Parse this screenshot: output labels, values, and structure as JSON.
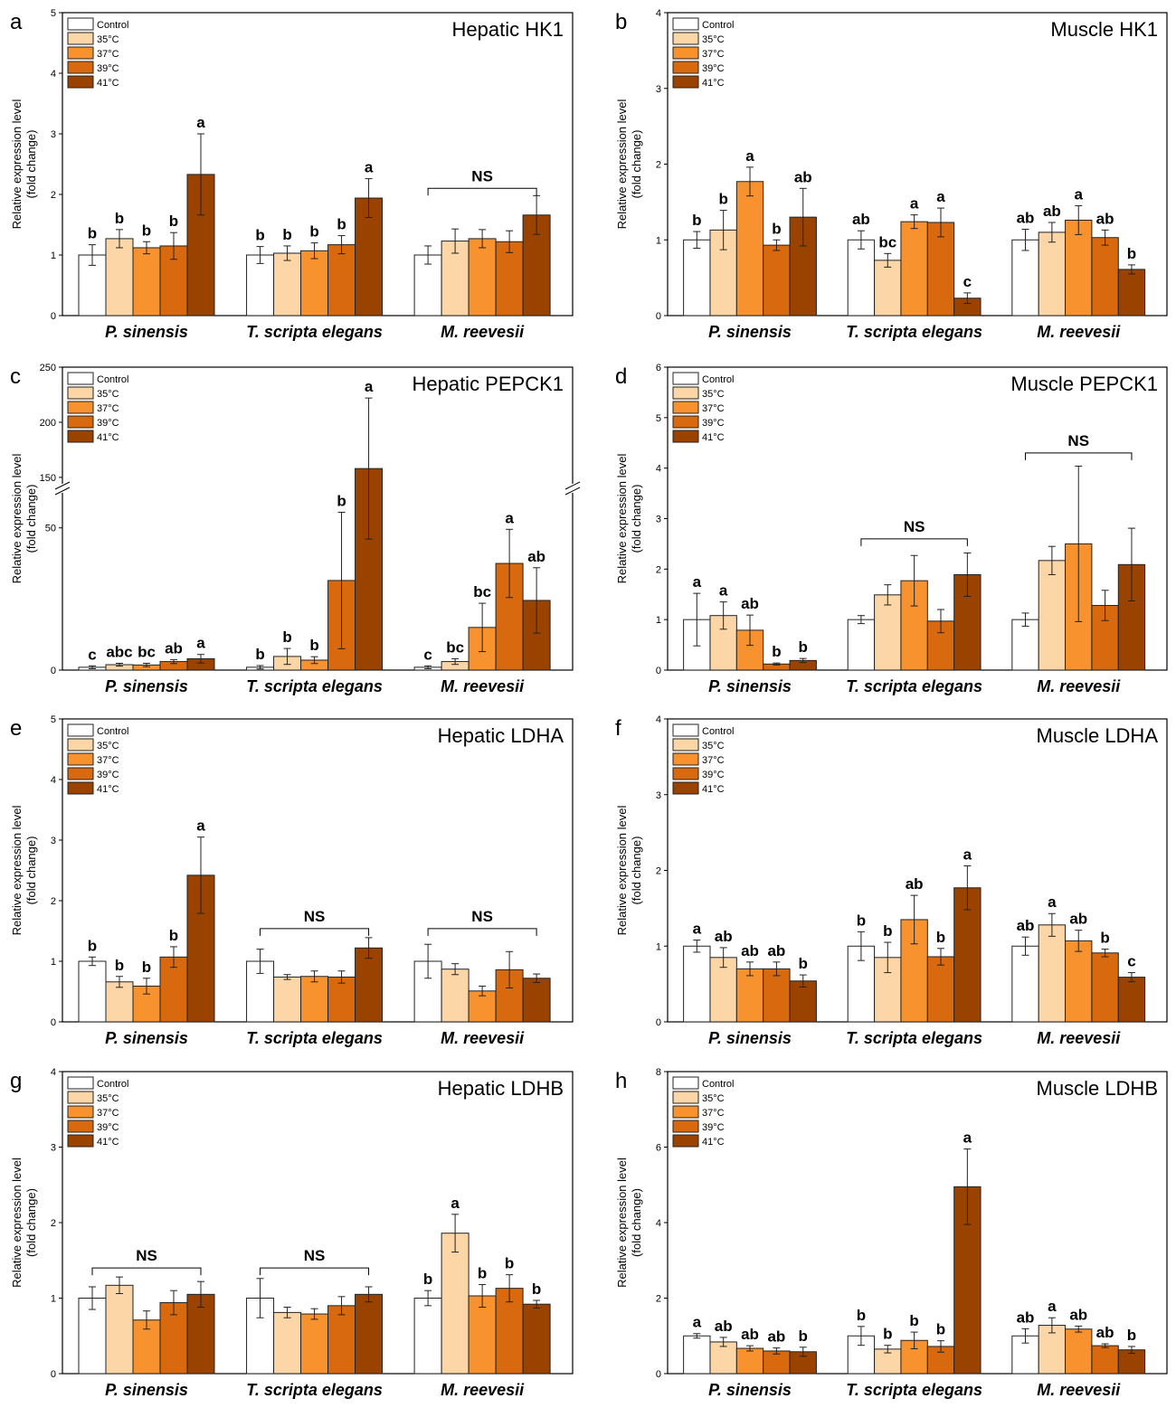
{
  "colors": {
    "Control": "#ffffff",
    "35°C": "#fcd6a6",
    "37°C": "#f7922e",
    "39°C": "#d9690f",
    "41°C": "#9a4300"
  },
  "ylabel_line1": "Relative expression level",
  "ylabel_line2": "(fold change)",
  "chart_data": [
    {
      "panel": "a",
      "type": "bar",
      "title": "Hepatic HK1",
      "categories": [
        "P. sinensis",
        "T. scripta elegans",
        "M. reevesii"
      ],
      "series_names": [
        "Control",
        "35°C",
        "37°C",
        "39°C",
        "41°C"
      ],
      "ylim": [
        0,
        5
      ],
      "yticks": [
        0,
        1,
        2,
        3,
        4,
        5
      ],
      "values": [
        [
          1.0,
          1.27,
          1.12,
          1.15,
          2.33
        ],
        [
          1.0,
          1.03,
          1.07,
          1.17,
          1.94
        ],
        [
          1.0,
          1.23,
          1.27,
          1.22,
          1.66
        ]
      ],
      "errors": [
        [
          0.17,
          0.15,
          0.1,
          0.22,
          0.67
        ],
        [
          0.14,
          0.12,
          0.13,
          0.15,
          0.32
        ],
        [
          0.15,
          0.2,
          0.15,
          0.18,
          0.32
        ]
      ],
      "letters": [
        [
          "b",
          "b",
          "b",
          "b",
          "a"
        ],
        [
          "b",
          "b",
          "b",
          "b",
          "a"
        ],
        [
          "",
          "",
          "",
          "",
          ""
        ]
      ],
      "ns": [
        null,
        null,
        {
          "from": 0,
          "to": 4,
          "y": 2.1,
          "label": "NS"
        }
      ]
    },
    {
      "panel": "b",
      "type": "bar",
      "title": "Muscle HK1",
      "categories": [
        "P. sinensis",
        "T. scripta elegans",
        "M. reevesii"
      ],
      "series_names": [
        "Control",
        "35°C",
        "37°C",
        "39°C",
        "41°C"
      ],
      "ylim": [
        0,
        4
      ],
      "yticks": [
        0,
        1,
        2,
        3,
        4
      ],
      "values": [
        [
          1.0,
          1.13,
          1.77,
          0.93,
          1.3
        ],
        [
          1.0,
          0.73,
          1.24,
          1.23,
          0.23
        ],
        [
          1.0,
          1.1,
          1.26,
          1.03,
          0.61
        ]
      ],
      "errors": [
        [
          0.11,
          0.26,
          0.19,
          0.07,
          0.38
        ],
        [
          0.12,
          0.09,
          0.09,
          0.19,
          0.07
        ],
        [
          0.14,
          0.13,
          0.19,
          0.1,
          0.06
        ]
      ],
      "letters": [
        [
          "b",
          "b",
          "a",
          "b",
          "ab"
        ],
        [
          "ab",
          "bc",
          "a",
          "a",
          "c"
        ],
        [
          "ab",
          "ab",
          "a",
          "ab",
          "b"
        ]
      ],
      "ns": [
        null,
        null,
        null
      ]
    },
    {
      "panel": "c",
      "type": "bar",
      "title": "Hepatic PEPCK1",
      "categories": [
        "P. sinensis",
        "T. scripta elegans",
        "M. reevesii"
      ],
      "series_names": [
        "Control",
        "35°C",
        "37°C",
        "39°C",
        "41°C"
      ],
      "ylim": [
        0,
        250
      ],
      "yticks": [
        0,
        50,
        150,
        200,
        250
      ],
      "axis_break": [
        62,
        145
      ],
      "values": [
        [
          1.0,
          1.9,
          1.8,
          3.0,
          4.0
        ],
        [
          1.0,
          4.8,
          3.5,
          31.5,
          158.0
        ],
        [
          1.0,
          3.0,
          15.0,
          37.5,
          24.5
        ]
      ],
      "errors": [
        [
          0.5,
          0.5,
          0.6,
          0.7,
          1.5
        ],
        [
          0.6,
          2.8,
          1.2,
          24.0,
          64.0
        ],
        [
          0.5,
          1.0,
          8.5,
          12.0,
          11.5
        ]
      ],
      "letters": [
        [
          "c",
          "abc",
          "bc",
          "ab",
          "a"
        ],
        [
          "b",
          "b",
          "b",
          "b",
          "a"
        ],
        [
          "c",
          "bc",
          "bc",
          "a",
          "ab"
        ]
      ],
      "ns": [
        null,
        null,
        null
      ]
    },
    {
      "panel": "d",
      "type": "bar",
      "title": "Muscle PEPCK1",
      "categories": [
        "P. sinensis",
        "T. scripta elegans",
        "M. reevesii"
      ],
      "series_names": [
        "Control",
        "35°C",
        "37°C",
        "39°C",
        "41°C"
      ],
      "ylim": [
        0,
        6
      ],
      "yticks": [
        0,
        1,
        2,
        3,
        4,
        5,
        6
      ],
      "values": [
        [
          1.0,
          1.08,
          0.79,
          0.12,
          0.19
        ],
        [
          1.0,
          1.49,
          1.77,
          0.97,
          1.89
        ],
        [
          1.0,
          2.17,
          2.5,
          1.28,
          2.09
        ]
      ],
      "errors": [
        [
          0.52,
          0.27,
          0.3,
          0.02,
          0.04
        ],
        [
          0.08,
          0.2,
          0.5,
          0.23,
          0.43
        ],
        [
          0.13,
          0.28,
          1.54,
          0.3,
          0.72
        ]
      ],
      "letters": [
        [
          "a",
          "a",
          "ab",
          "b",
          "b"
        ],
        [
          "",
          "",
          "",
          "",
          ""
        ],
        [
          "",
          "",
          "",
          "",
          ""
        ]
      ],
      "ns": [
        null,
        {
          "from": 0,
          "to": 4,
          "y": 2.6,
          "label": "NS"
        },
        {
          "from": 0,
          "to": 4,
          "y": 4.3,
          "label": "NS"
        }
      ]
    },
    {
      "panel": "e",
      "type": "bar",
      "title": "Hepatic LDHA",
      "categories": [
        "P. sinensis",
        "T. scripta elegans",
        "M. reevesii"
      ],
      "series_names": [
        "Control",
        "35°C",
        "37°C",
        "39°C",
        "41°C"
      ],
      "ylim": [
        0,
        5
      ],
      "yticks": [
        0,
        1,
        2,
        3,
        4,
        5
      ],
      "values": [
        [
          1.0,
          0.66,
          0.59,
          1.07,
          2.42
        ],
        [
          1.0,
          0.74,
          0.75,
          0.74,
          1.22
        ],
        [
          1.0,
          0.87,
          0.51,
          0.86,
          0.72
        ]
      ],
      "errors": [
        [
          0.07,
          0.09,
          0.13,
          0.17,
          0.63
        ],
        [
          0.2,
          0.04,
          0.09,
          0.1,
          0.17
        ],
        [
          0.28,
          0.09,
          0.08,
          0.3,
          0.07
        ]
      ],
      "letters": [
        [
          "b",
          "b",
          "b",
          "b",
          "a"
        ],
        [
          "",
          "",
          "",
          "",
          ""
        ],
        [
          "",
          "",
          "",
          "",
          ""
        ]
      ],
      "ns": [
        null,
        {
          "from": 0,
          "to": 4,
          "y": 1.54,
          "label": "NS"
        },
        {
          "from": 0,
          "to": 4,
          "y": 1.54,
          "label": "NS"
        }
      ]
    },
    {
      "panel": "f",
      "type": "bar",
      "title": "Muscle LDHA",
      "categories": [
        "P. sinensis",
        "T. scripta elegans",
        "M. reevesii"
      ],
      "series_names": [
        "Control",
        "35°C",
        "37°C",
        "39°C",
        "41°C"
      ],
      "ylim": [
        0,
        4
      ],
      "yticks": [
        0,
        1,
        2,
        3,
        4
      ],
      "values": [
        [
          1.0,
          0.85,
          0.7,
          0.7,
          0.54
        ],
        [
          1.0,
          0.85,
          1.35,
          0.86,
          1.77
        ],
        [
          1.0,
          1.28,
          1.07,
          0.91,
          0.59
        ]
      ],
      "errors": [
        [
          0.08,
          0.13,
          0.09,
          0.09,
          0.08
        ],
        [
          0.19,
          0.2,
          0.32,
          0.11,
          0.29
        ],
        [
          0.12,
          0.15,
          0.14,
          0.05,
          0.06
        ]
      ],
      "letters": [
        [
          "a",
          "ab",
          "ab",
          "ab",
          "b"
        ],
        [
          "b",
          "b",
          "ab",
          "b",
          "a"
        ],
        [
          "ab",
          "a",
          "ab",
          "b",
          "c"
        ]
      ],
      "ns": [
        null,
        null,
        null
      ]
    },
    {
      "panel": "g",
      "type": "bar",
      "title": "Hepatic LDHB",
      "categories": [
        "P. sinensis",
        "T. scripta elegans",
        "M. reevesii"
      ],
      "series_names": [
        "Control",
        "35°C",
        "37°C",
        "39°C",
        "41°C"
      ],
      "ylim": [
        0,
        4
      ],
      "yticks": [
        0,
        1,
        2,
        3,
        4
      ],
      "values": [
        [
          1.0,
          1.17,
          0.71,
          0.94,
          1.05
        ],
        [
          1.0,
          0.81,
          0.79,
          0.9,
          1.05
        ],
        [
          1.0,
          1.86,
          1.03,
          1.13,
          0.92
        ]
      ],
      "errors": [
        [
          0.15,
          0.11,
          0.12,
          0.16,
          0.17
        ],
        [
          0.26,
          0.07,
          0.07,
          0.12,
          0.1
        ],
        [
          0.1,
          0.25,
          0.15,
          0.18,
          0.05
        ]
      ],
      "letters": [
        [
          "",
          "",
          "",
          "",
          ""
        ],
        [
          "",
          "",
          "",
          "",
          ""
        ],
        [
          "b",
          "a",
          "b",
          "b",
          "b"
        ]
      ],
      "ns": [
        {
          "from": 0,
          "to": 4,
          "y": 1.4,
          "label": "NS"
        },
        {
          "from": 0,
          "to": 4,
          "y": 1.4,
          "label": "NS"
        },
        null
      ]
    },
    {
      "panel": "h",
      "type": "bar",
      "title": "Muscle LDHB",
      "categories": [
        "P. sinensis",
        "T. scripta elegans",
        "M. reevesii"
      ],
      "series_names": [
        "Control",
        "35°C",
        "37°C",
        "39°C",
        "41°C"
      ],
      "ylim": [
        0,
        8
      ],
      "yticks": [
        0,
        2,
        4,
        6,
        8
      ],
      "values": [
        [
          1.0,
          0.84,
          0.67,
          0.6,
          0.58
        ],
        [
          1.0,
          0.65,
          0.88,
          0.72,
          4.95
        ],
        [
          1.0,
          1.28,
          1.18,
          0.74,
          0.63
        ]
      ],
      "errors": [
        [
          0.06,
          0.12,
          0.07,
          0.08,
          0.12
        ],
        [
          0.25,
          0.1,
          0.22,
          0.15,
          1.0
        ],
        [
          0.19,
          0.2,
          0.08,
          0.05,
          0.09
        ]
      ],
      "letters": [
        [
          "a",
          "ab",
          "ab",
          "ab",
          "b"
        ],
        [
          "b",
          "b",
          "b",
          "b",
          "a"
        ],
        [
          "ab",
          "a",
          "ab",
          "ab",
          "b"
        ]
      ],
      "ns": [
        null,
        null,
        null
      ]
    }
  ]
}
